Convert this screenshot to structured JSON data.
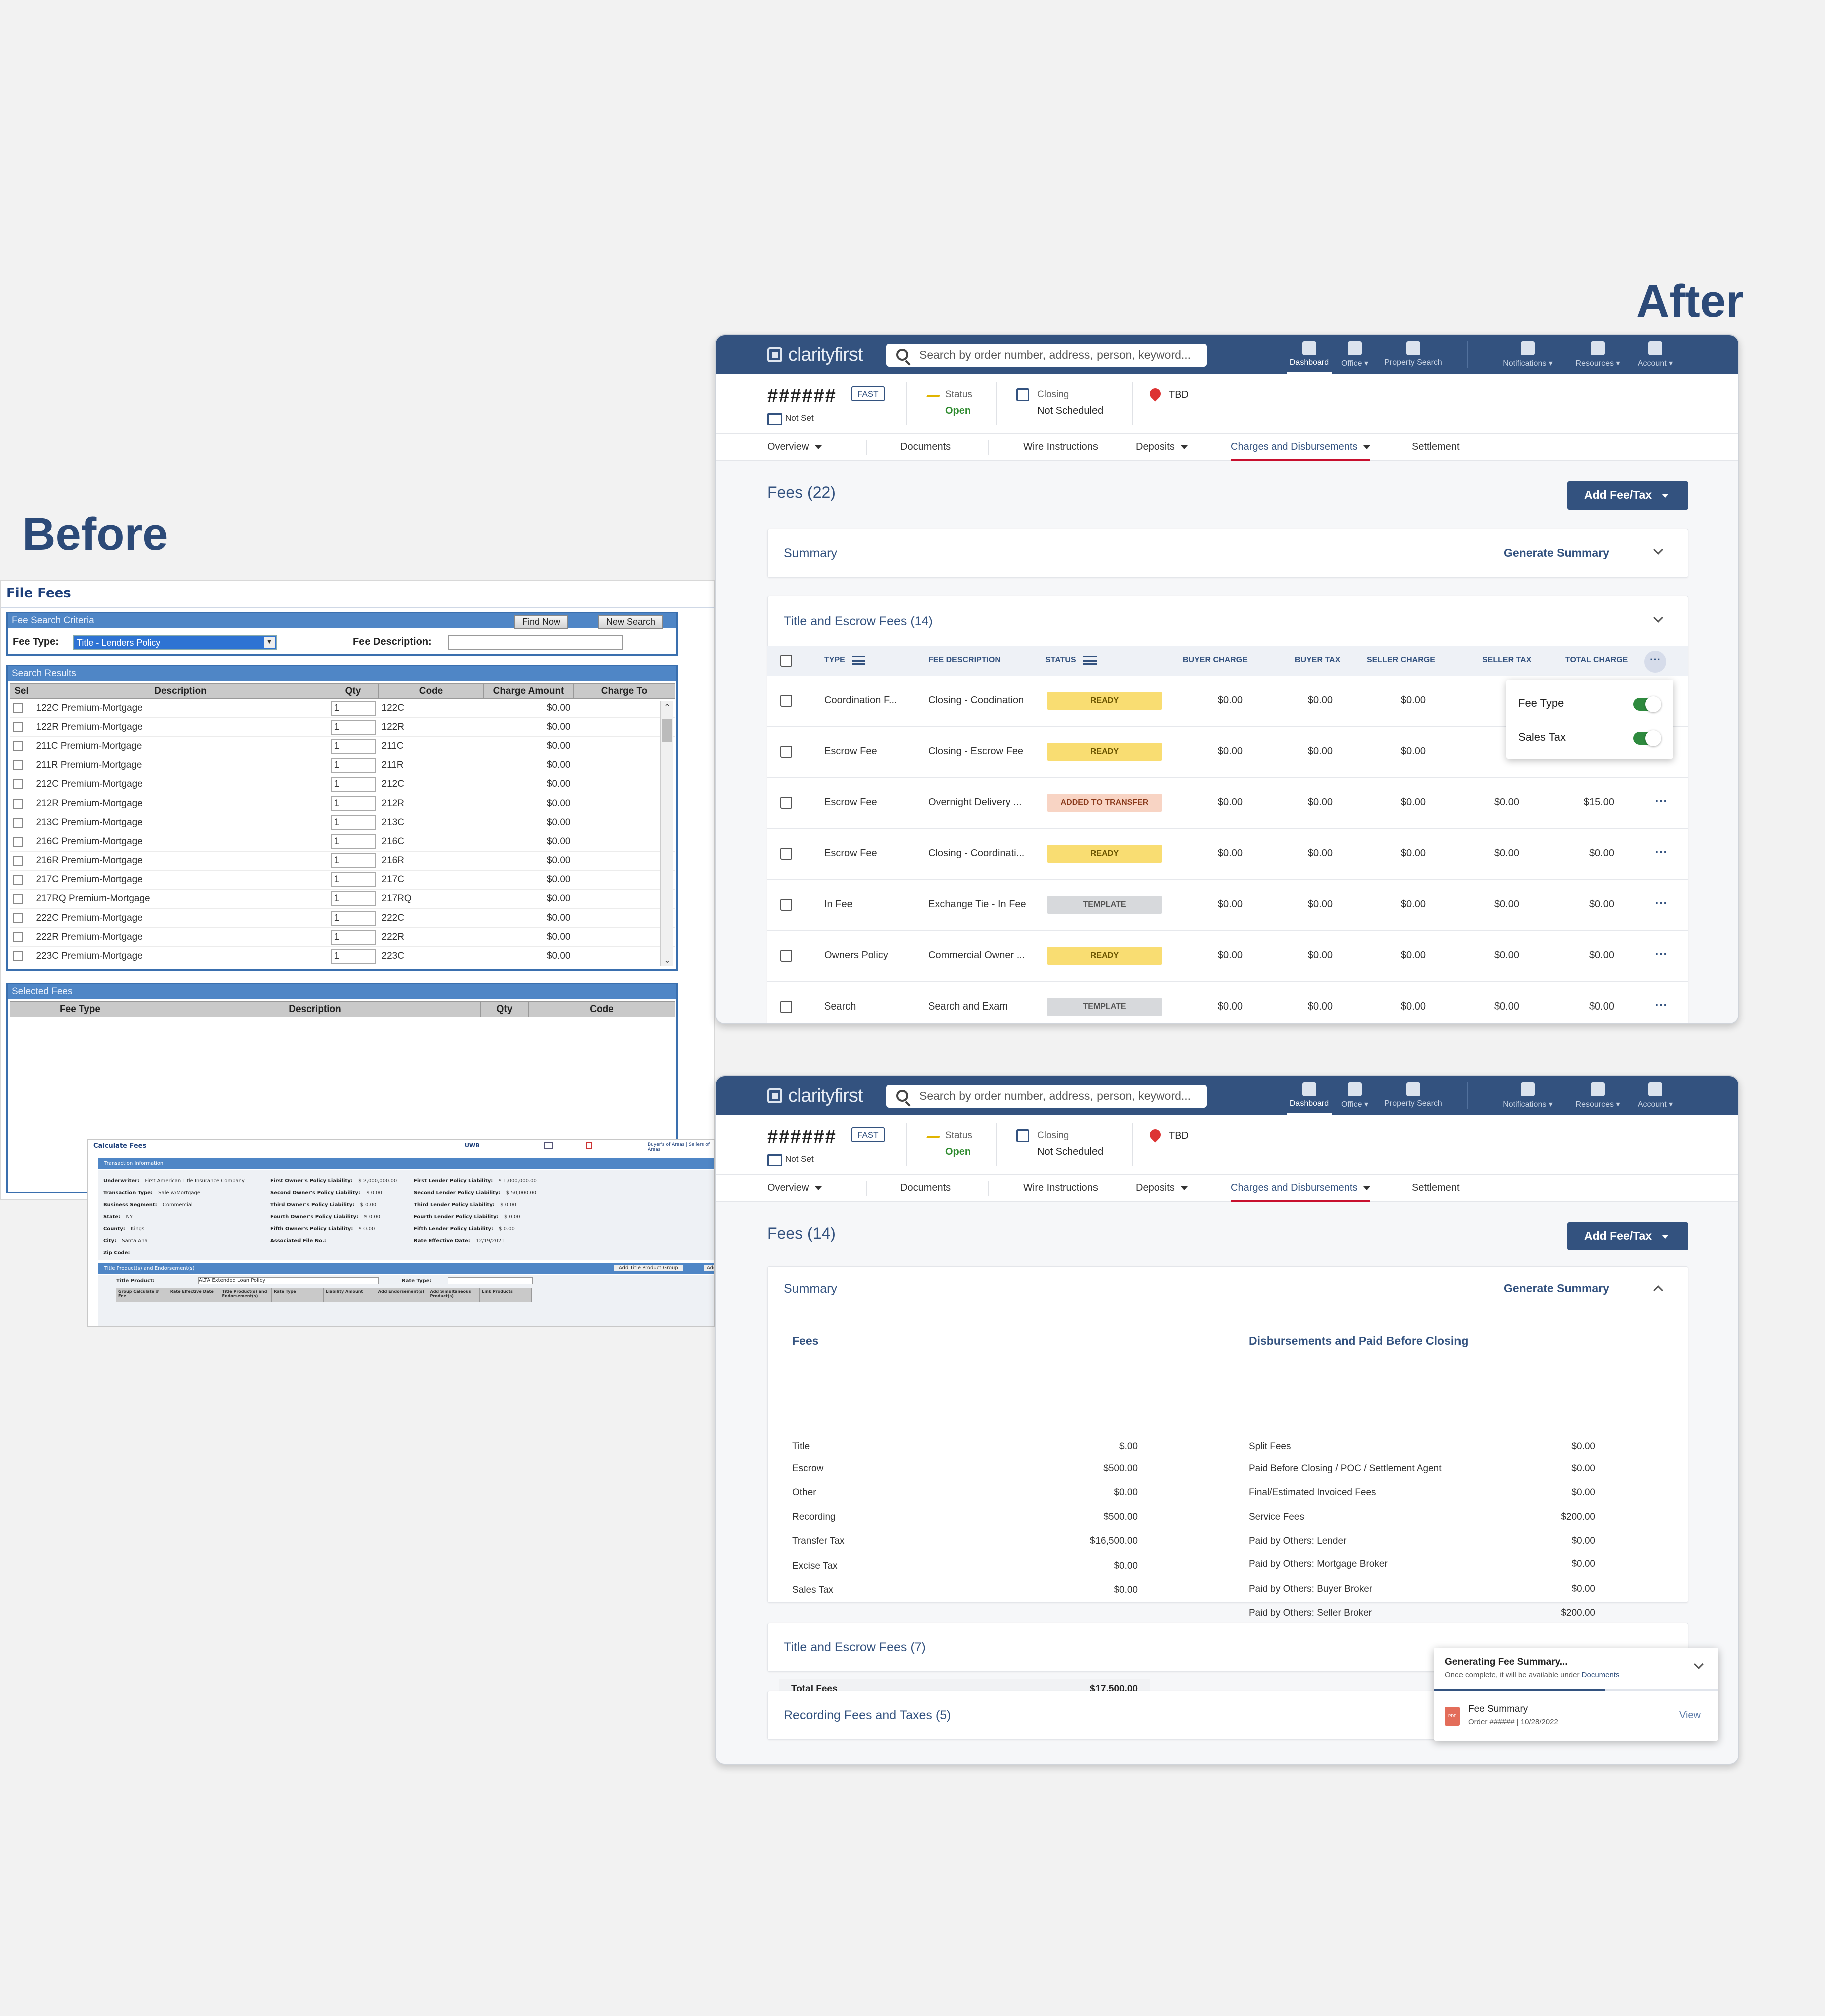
{
  "headings": {
    "before": "Before",
    "after": "After"
  },
  "legacy": {
    "title": "File Fees",
    "criteria": {
      "header": "Fee Search Criteria",
      "find_now": "Find Now",
      "new_search": "New Search",
      "fee_type_label": "Fee Type:",
      "fee_type_value": "Title - Lenders Policy",
      "fee_description_label": "Fee Description:"
    },
    "results": {
      "header": "Search Results",
      "columns": [
        "Sel",
        "Description",
        "Qty",
        "Code",
        "Charge Amount",
        "Charge To"
      ],
      "rows": [
        {
          "description": "122C Premium-Mortgage",
          "qty": "1",
          "code": "122C",
          "amount": "$0.00"
        },
        {
          "description": "122R Premium-Mortgage",
          "qty": "1",
          "code": "122R",
          "amount": "$0.00"
        },
        {
          "description": "211C Premium-Mortgage",
          "qty": "1",
          "code": "211C",
          "amount": "$0.00"
        },
        {
          "description": "211R Premium-Mortgage",
          "qty": "1",
          "code": "211R",
          "amount": "$0.00"
        },
        {
          "description": "212C Premium-Mortgage",
          "qty": "1",
          "code": "212C",
          "amount": "$0.00"
        },
        {
          "description": "212R Premium-Mortgage",
          "qty": "1",
          "code": "212R",
          "amount": "$0.00"
        },
        {
          "description": "213C Premium-Mortgage",
          "qty": "1",
          "code": "213C",
          "amount": "$0.00"
        },
        {
          "description": "216C Premium-Mortgage",
          "qty": "1",
          "code": "216C",
          "amount": "$0.00"
        },
        {
          "description": "216R Premium-Mortgage",
          "qty": "1",
          "code": "216R",
          "amount": "$0.00"
        },
        {
          "description": "217C Premium-Mortgage",
          "qty": "1",
          "code": "217C",
          "amount": "$0.00"
        },
        {
          "description": "217RQ Premium-Mortgage",
          "qty": "1",
          "code": "217RQ",
          "amount": "$0.00"
        },
        {
          "description": "222C Premium-Mortgage",
          "qty": "1",
          "code": "222C",
          "amount": "$0.00"
        },
        {
          "description": "222R Premium-Mortgage",
          "qty": "1",
          "code": "222R",
          "amount": "$0.00"
        },
        {
          "description": "223C Premium-Mortgage",
          "qty": "1",
          "code": "223C",
          "amount": "$0.00"
        }
      ]
    },
    "selected": {
      "header": "Selected Fees",
      "columns": [
        "Fee Type",
        "Description",
        "Qty",
        "Code"
      ]
    },
    "calculate": {
      "title": "Calculate Fees",
      "uwb": "UWB",
      "links": "Buyer's of Areas | Sellers of Areas",
      "transaction_header": "Transaction Information",
      "col1": [
        {
          "label": "Underwriter:",
          "value": "First American Title Insurance Company"
        },
        {
          "label": "Transaction Type:",
          "value": "Sale w/Mortgage"
        },
        {
          "label": "Business Segment:",
          "value": "Commercial"
        },
        {
          "label": "State:",
          "value": "NY"
        },
        {
          "label": "County:",
          "value": "Kings"
        },
        {
          "label": "City:",
          "value": "Santa Ana"
        },
        {
          "label": "Zip Code:",
          "value": ""
        }
      ],
      "col2": [
        {
          "label": "First Owner's Policy Liability:",
          "value": "$ 2,000,000.00"
        },
        {
          "label": "Second Owner's Policy Liability:",
          "value": "$ 0.00"
        },
        {
          "label": "Third Owner's Policy Liability:",
          "value": "$ 0.00"
        },
        {
          "label": "Fourth Owner's Policy Liability:",
          "value": "$ 0.00"
        },
        {
          "label": "Fifth Owner's Policy Liability:",
          "value": "$ 0.00"
        },
        {
          "label": "Associated File No.:",
          "value": ""
        }
      ],
      "col3": [
        {
          "label": "First Lender Policy Liability:",
          "value": "$ 1,000,000.00"
        },
        {
          "label": "Second Lender Policy Liability:",
          "value": "$ 50,000.00"
        },
        {
          "label": "Third Lender Policy Liability:",
          "value": "$ 0.00"
        },
        {
          "label": "Fourth Lender Policy Liability:",
          "value": "$ 0.00"
        },
        {
          "label": "Fifth Lender Policy Liability:",
          "value": "$ 0.00"
        },
        {
          "label": "Rate Effective Date:",
          "value": "12/19/2021"
        }
      ],
      "products_header": "Title Product(s) and Endorsement(s)",
      "add_group": "Add Title Product Group",
      "add": "Add",
      "title_product_label": "Title Product:",
      "title_product_value": "ALTA Extended Loan Policy",
      "rate_type_label": "Rate Type:",
      "product_columns": [
        "Group Calculate #   Fee",
        "Rate Effective Date",
        "Title Product(s) and Endorsement(s)",
        "Rate Type",
        "Liability Amount",
        "Add Endorsement(s)",
        "Add Simultaneous Product(s)",
        "Link Products"
      ]
    }
  },
  "app": {
    "brand": "clarity",
    "brand_suffix": "first",
    "search_placeholder": "Search by order number, address, person, keyword...",
    "nav": [
      "Dashboard",
      "Office ▾",
      "Property Search",
      "Notifications ▾",
      "Resources ▾",
      "Account ▾"
    ],
    "order": {
      "number": "######",
      "badge": "FAST",
      "not_set": "Not Set",
      "status_label": "Status",
      "status_value": "Open",
      "closing_label": "Closing",
      "closing_value": "Not Scheduled",
      "location": "TBD"
    },
    "tabs": [
      "Overview",
      "Documents",
      "Wire Instructions",
      "Deposits",
      "Charges and Disbursements",
      "Settlement"
    ],
    "add_fee": "Add Fee/Tax",
    "summary_label": "Summary",
    "generate_summary": "Generate Summary"
  },
  "top": {
    "fees_title": "Fees (22)",
    "section_title": "Title and Escrow Fees (14)",
    "columns": [
      "TYPE",
      "FEE DESCRIPTION",
      "STATUS",
      "BUYER CHARGE",
      "BUYER TAX",
      "SELLER CHARGE",
      "SELLER TAX",
      "TOTAL CHARGE"
    ],
    "rows": [
      {
        "type": "Coordination F...",
        "desc": "Closing - Coodination",
        "status": "READY",
        "kind": "ready",
        "buyer": "$0.00",
        "buyer_tax": "$0.00",
        "seller": "$0.00",
        "seller_tax": "",
        "total": ""
      },
      {
        "type": "Escrow Fee",
        "desc": "Closing - Escrow Fee",
        "status": "READY",
        "kind": "ready",
        "buyer": "$0.00",
        "buyer_tax": "$0.00",
        "seller": "$0.00",
        "seller_tax": "",
        "total": ""
      },
      {
        "type": "Escrow Fee",
        "desc": "Overnight Delivery ...",
        "status": "ADDED TO TRANSFER",
        "kind": "transfer",
        "buyer": "$0.00",
        "buyer_tax": "$0.00",
        "seller": "$0.00",
        "seller_tax": "$0.00",
        "total": "$15.00"
      },
      {
        "type": "Escrow Fee",
        "desc": "Closing - Coordinati...",
        "status": "READY",
        "kind": "ready",
        "buyer": "$0.00",
        "buyer_tax": "$0.00",
        "seller": "$0.00",
        "seller_tax": "$0.00",
        "total": "$0.00"
      },
      {
        "type": "In Fee",
        "desc": "Exchange Tie - In Fee",
        "status": "TEMPLATE",
        "kind": "template",
        "buyer": "$0.00",
        "buyer_tax": "$0.00",
        "seller": "$0.00",
        "seller_tax": "$0.00",
        "total": "$0.00"
      },
      {
        "type": "Owners Policy",
        "desc": "Commercial Owner ...",
        "status": "READY",
        "kind": "ready",
        "buyer": "$0.00",
        "buyer_tax": "$0.00",
        "seller": "$0.00",
        "seller_tax": "$0.00",
        "total": "$0.00"
      },
      {
        "type": "Search",
        "desc": "Search and Exam",
        "status": "TEMPLATE",
        "kind": "template",
        "buyer": "$0.00",
        "buyer_tax": "$0.00",
        "seller": "$0.00",
        "seller_tax": "$0.00",
        "total": "$0.00"
      }
    ],
    "popover": [
      {
        "label": "Fee Type",
        "on": true
      },
      {
        "label": "Sales Tax",
        "on": true
      }
    ]
  },
  "bottom": {
    "fees_title": "Fees (14)",
    "fees_heading": "Fees",
    "fees_lines": [
      {
        "label": "Title",
        "value": "$.00"
      },
      {
        "label": "Escrow",
        "value": "$500.00"
      },
      {
        "label": "Other",
        "value": "$0.00"
      },
      {
        "label": "Recording",
        "value": "$500.00"
      },
      {
        "label": "Transfer Tax",
        "value": "$16,500.00"
      },
      {
        "label": "Excise Tax",
        "value": "$0.00"
      },
      {
        "label": "Sales Tax",
        "value": "$0.00"
      }
    ],
    "total_label": "Total Fees",
    "total_value": "$17,500.00",
    "disb_heading": "Disbursements and Paid Before Closing",
    "disb_lines": [
      {
        "label": "Split Fees",
        "value": "$0.00"
      },
      {
        "label": "Paid Before Closing / POC / Settlement Agent",
        "value": "$0.00"
      },
      {
        "label": "Final/Estimated Invoiced Fees",
        "value": "$0.00"
      },
      {
        "label": "Service Fees",
        "value": "$200.00"
      },
      {
        "label": "Paid by Others: Lender",
        "value": "$0.00"
      },
      {
        "label": "Paid by Others: Mortgage Broker",
        "value": "$0.00"
      },
      {
        "label": "Paid by Others: Buyer Broker",
        "value": "$0.00"
      },
      {
        "label": "Paid by Others: Seller Broker",
        "value": "$200.00"
      }
    ],
    "section_title_escrow": "Title and Escrow Fees (7)",
    "section_title_recording": "Recording Fees and Taxes (5)",
    "toast": {
      "title": "Generating Fee Summary...",
      "subtitle": "Once complete, it will be available under",
      "subtitle_link": "Documents",
      "pdf_label": "PDF",
      "file_name": "Fee Summary",
      "file_meta": "Order ######  |  10/28/2022",
      "view": "View",
      "progress": 0.6
    }
  },
  "colors": {
    "brand": "#33527f",
    "accent_red": "#c8102e",
    "ready": "#f9dd72",
    "transfer": "#f8d4c4",
    "template": "#d7d9dc",
    "toggle_on": "#2e8a3e"
  }
}
